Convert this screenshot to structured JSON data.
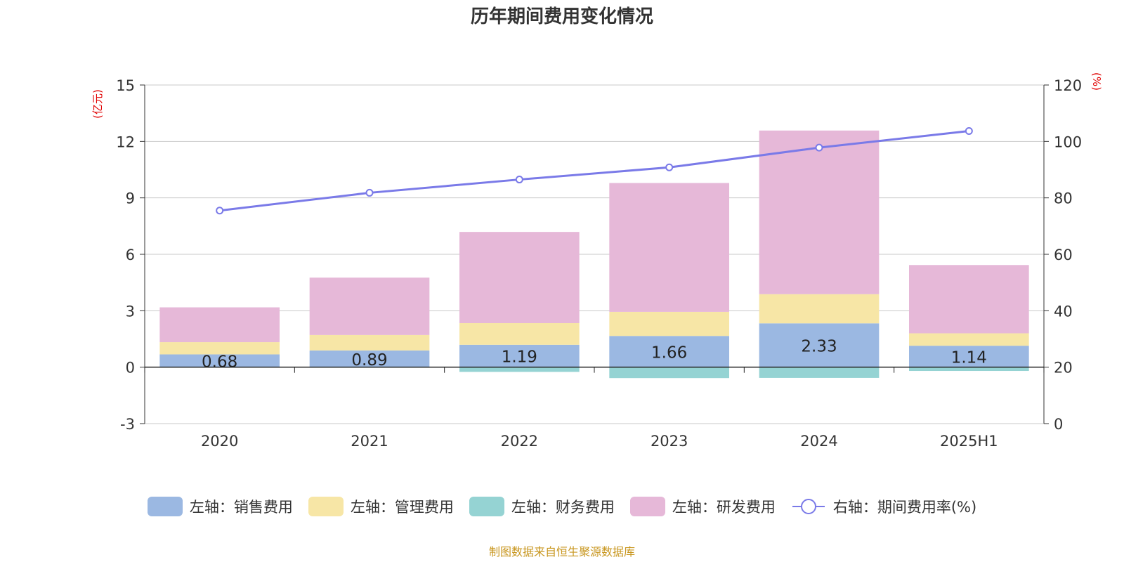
{
  "chart_data": {
    "type": "bar",
    "title": "历年期间费用变化情况",
    "categories": [
      "2020",
      "2021",
      "2022",
      "2023",
      "2024",
      "2025H1"
    ],
    "y_left": {
      "unit": "(亿元)",
      "min": -3,
      "max": 15,
      "ticks": [
        -3,
        0,
        3,
        6,
        9,
        12,
        15
      ]
    },
    "y_right": {
      "unit": "(%)",
      "min": 0,
      "max": 120,
      "ticks": [
        0,
        20,
        40,
        60,
        80,
        100,
        120
      ]
    },
    "series": [
      {
        "name": "左轴：销售费用",
        "type": "bar",
        "stack": "total",
        "color": "#9bb8e2",
        "values": [
          0.68,
          0.89,
          1.19,
          1.66,
          2.33,
          1.14
        ],
        "labels": [
          "0.68",
          "0.89",
          "1.19",
          "1.66",
          "2.33",
          "1.14"
        ]
      },
      {
        "name": "左轴：管理费用",
        "type": "bar",
        "stack": "total",
        "color": "#f7e6a6",
        "values": [
          0.65,
          0.82,
          1.15,
          1.28,
          1.55,
          0.66
        ]
      },
      {
        "name": "左轴：财务费用",
        "type": "bar",
        "stack": "total",
        "color": "#95d3d3",
        "values": [
          -0.02,
          -0.03,
          -0.25,
          -0.58,
          -0.57,
          -0.2
        ]
      },
      {
        "name": "左轴：研发费用",
        "type": "bar",
        "stack": "total",
        "color": "#e6b8d8",
        "values": [
          1.85,
          3.05,
          4.85,
          6.85,
          8.7,
          3.63
        ]
      },
      {
        "name": "右轴：期间费用率(%)",
        "type": "line",
        "axis": "right",
        "color": "#7a7ae8",
        "values": [
          75.5,
          81.8,
          86.5,
          90.8,
          97.8,
          103.7
        ]
      }
    ],
    "grid": true,
    "legend_position": "bottom"
  },
  "footer": "制图数据来自恒生聚源数据库"
}
